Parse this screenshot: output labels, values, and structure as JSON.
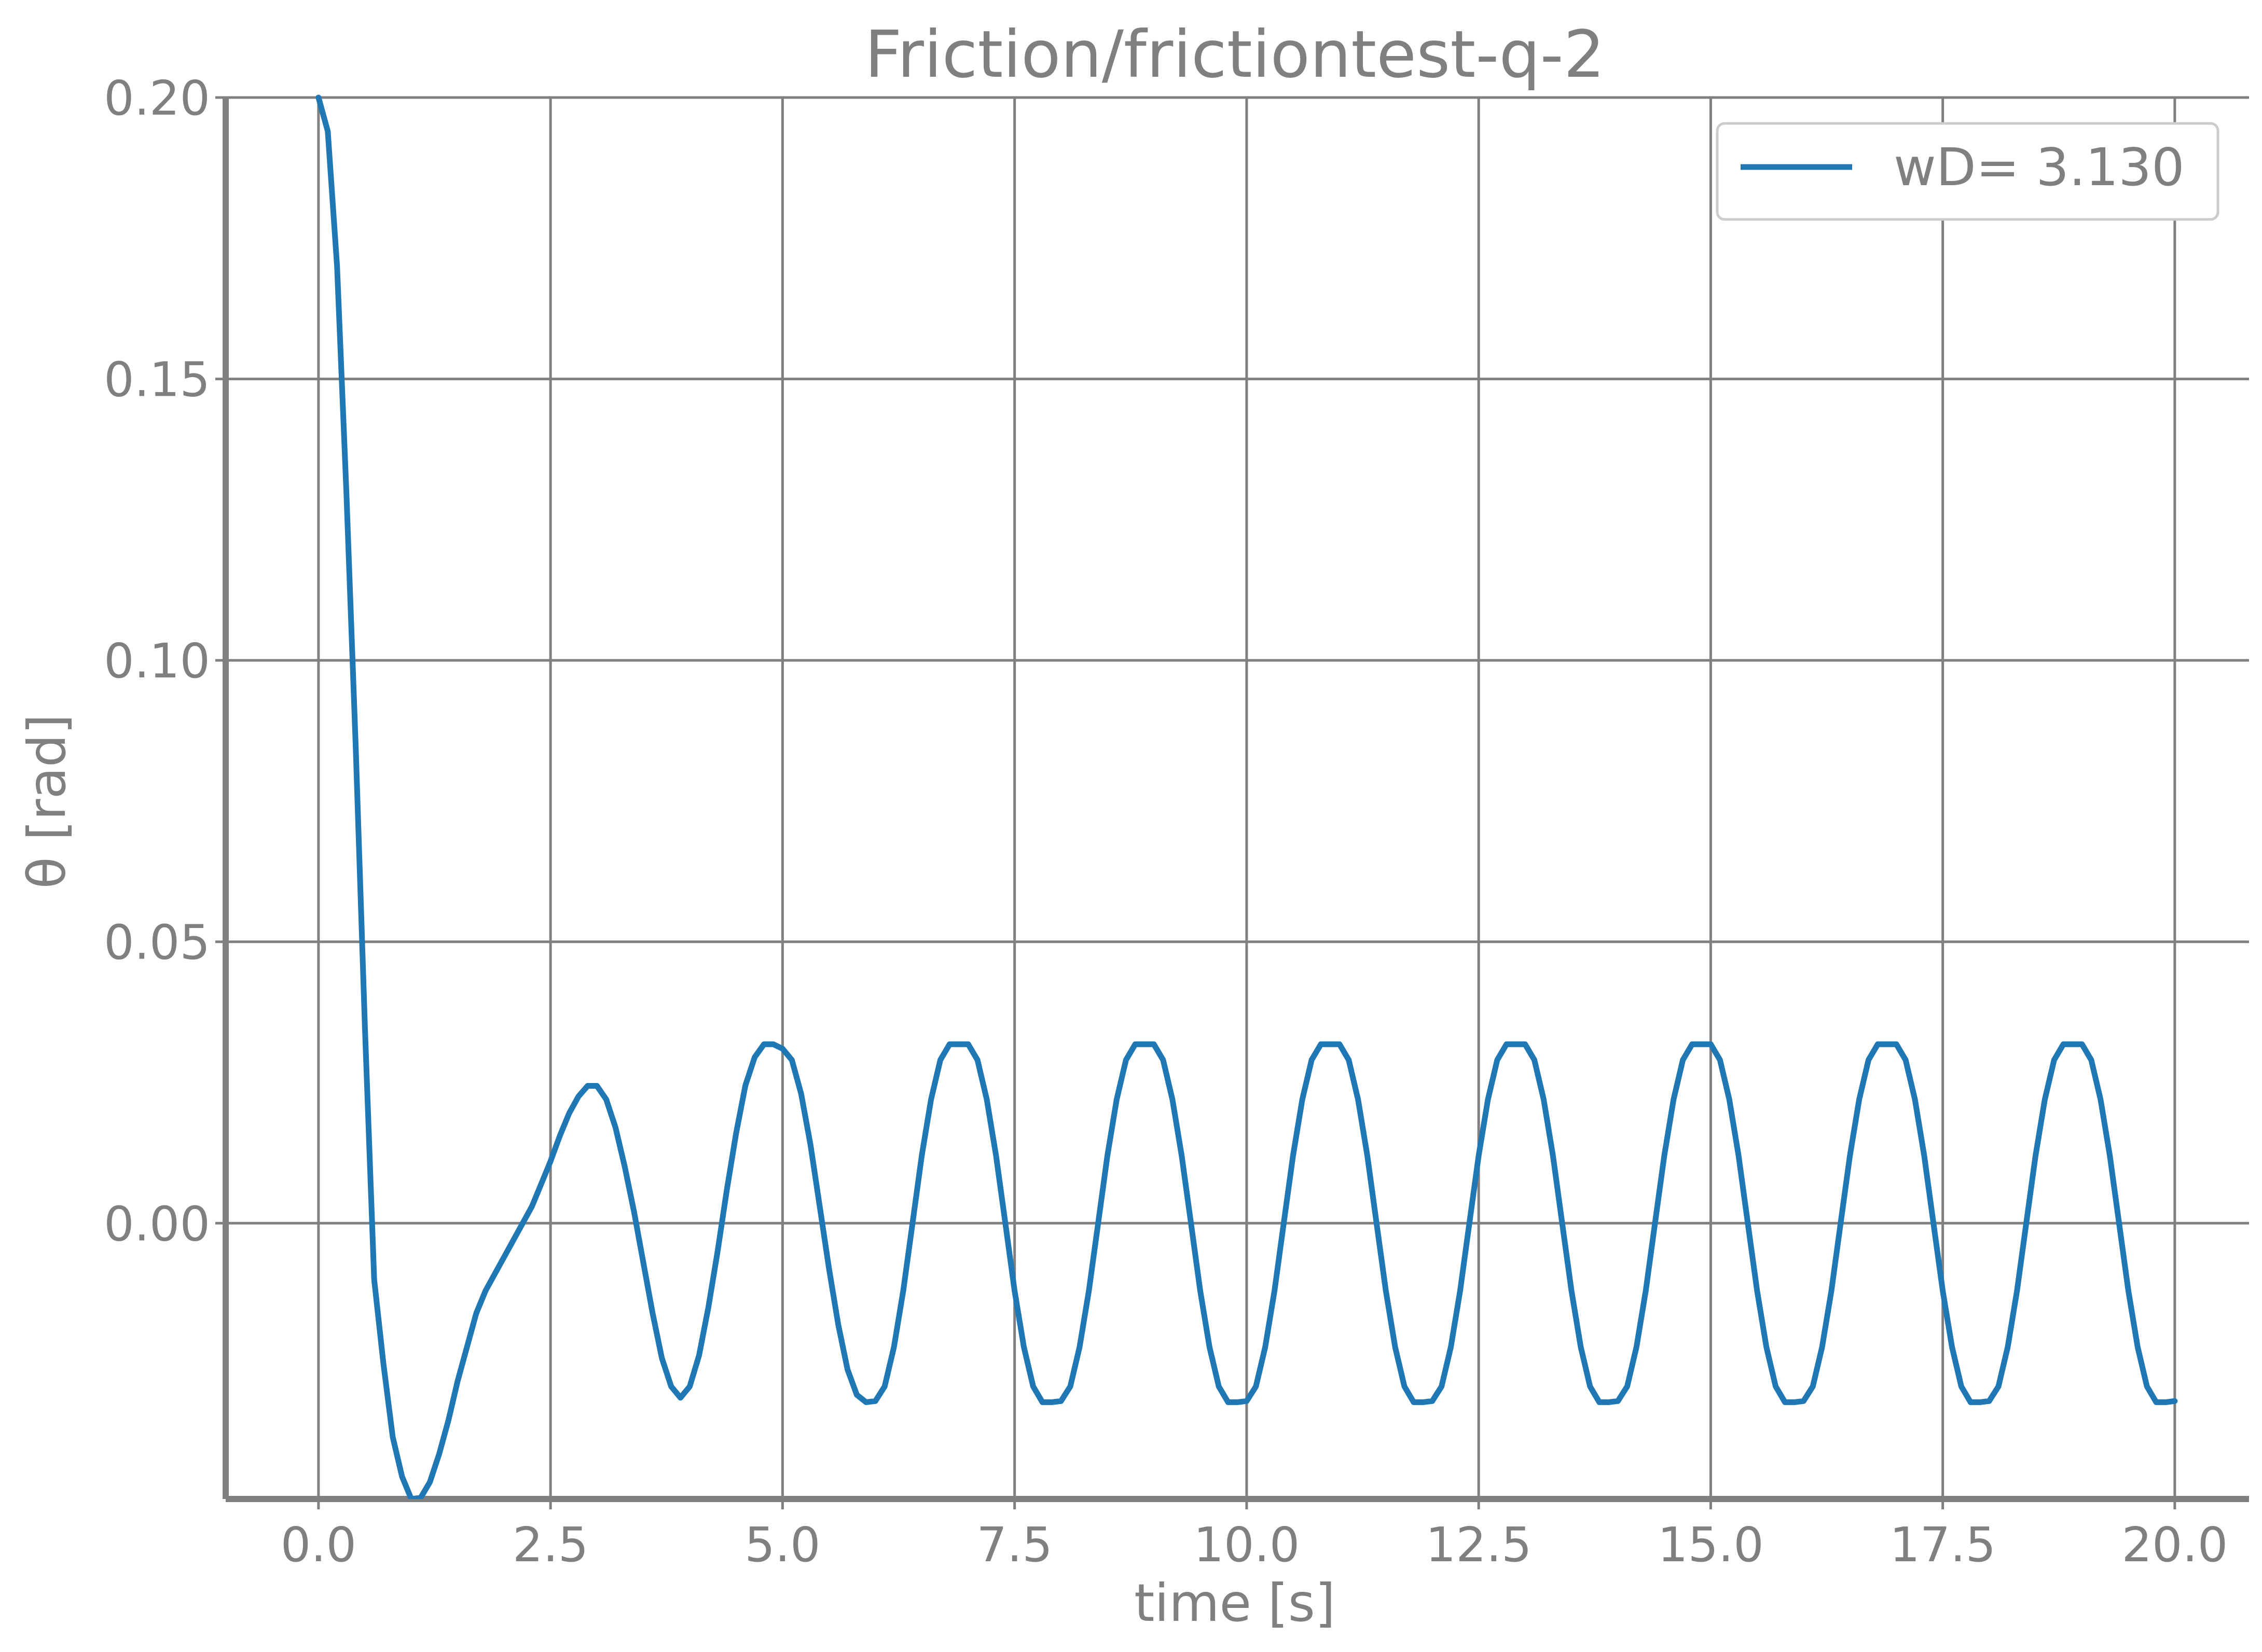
{
  "chart_data": {
    "type": "line",
    "title": "Friction/frictiontest-q-2",
    "xlabel": "time [s]",
    "ylabel": "θ [rad]",
    "xlim": [
      -1.0,
      20.8
    ],
    "ylim": [
      -0.049,
      0.2
    ],
    "xticks": [
      0.0,
      2.5,
      5.0,
      7.5,
      10.0,
      12.5,
      15.0,
      17.5,
      20.0
    ],
    "xtick_labels": [
      "0.0",
      "2.5",
      "5.0",
      "7.5",
      "10.0",
      "12.5",
      "15.0",
      "17.5",
      "20.0"
    ],
    "yticks": [
      0.0,
      0.05,
      0.1,
      0.15,
      0.2
    ],
    "ytick_labels": [
      "0.00",
      "0.05",
      "0.10",
      "0.15",
      "0.20"
    ],
    "grid": true,
    "legend_position": "top-right",
    "series": [
      {
        "name": "wD= 3.130",
        "color": "#1f77b4",
        "x": [
          0.0,
          0.1,
          0.2,
          0.3,
          0.4,
          0.5,
          0.6,
          0.7,
          0.8,
          0.9,
          1.0,
          1.1,
          1.2,
          1.3,
          1.4,
          1.5,
          1.6,
          1.7,
          1.8,
          1.9,
          2.0,
          2.1,
          2.2,
          2.3,
          2.4,
          2.5,
          2.6,
          2.7,
          2.8,
          2.9,
          3.0,
          3.1,
          3.2,
          3.3,
          3.4,
          3.5,
          3.6,
          3.7,
          3.8,
          3.9,
          4.0,
          4.1,
          4.2,
          4.3,
          4.4,
          4.5,
          4.6,
          4.7,
          4.8,
          4.9,
          5.0,
          5.1,
          5.2,
          5.3,
          5.4,
          5.5,
          5.6,
          5.7,
          5.8,
          5.9,
          6.0,
          6.1,
          6.2,
          6.3,
          6.4,
          6.5,
          6.6,
          6.7,
          6.8,
          6.9,
          7.0,
          7.1,
          7.2,
          7.3,
          7.4,
          7.5,
          7.6,
          7.7,
          7.8,
          7.9,
          8.0,
          8.1,
          8.2,
          8.3,
          8.4,
          8.5,
          8.6,
          8.7,
          8.8,
          8.9,
          9.0,
          9.1,
          9.2,
          9.3,
          9.4,
          9.5,
          9.6,
          9.7,
          9.8,
          9.9,
          10.0,
          10.1,
          10.2,
          10.3,
          10.4,
          10.5,
          10.6,
          10.7,
          10.8,
          10.9,
          11.0,
          11.1,
          11.2,
          11.3,
          11.4,
          11.5,
          11.6,
          11.7,
          11.8,
          11.9,
          12.0,
          12.1,
          12.2,
          12.3,
          12.4,
          12.5,
          12.6,
          12.7,
          12.8,
          12.9,
          13.0,
          13.1,
          13.2,
          13.3,
          13.4,
          13.5,
          13.6,
          13.7,
          13.8,
          13.9,
          14.0,
          14.1,
          14.2,
          14.3,
          14.4,
          14.5,
          14.6,
          14.7,
          14.8,
          14.9,
          15.0,
          15.1,
          15.2,
          15.3,
          15.4,
          15.5,
          15.6,
          15.7,
          15.8,
          15.9,
          16.0,
          16.1,
          16.2,
          16.3,
          16.4,
          16.5,
          16.6,
          16.7,
          16.8,
          16.9,
          17.0,
          17.1,
          17.2,
          17.3,
          17.4,
          17.5,
          17.6,
          17.7,
          17.8,
          17.9,
          18.0,
          18.1,
          18.2,
          18.3,
          18.4,
          18.5,
          18.6,
          18.7,
          18.8,
          18.9,
          19.0,
          19.1,
          19.2,
          19.3,
          19.4,
          19.5,
          19.6,
          19.7,
          19.8,
          19.9,
          20.0
        ],
        "y": [
          0.2,
          0.194,
          0.17,
          0.13,
          0.085,
          0.035,
          -0.01,
          -0.025,
          -0.038,
          -0.045,
          -0.049,
          -0.0488,
          -0.046,
          -0.041,
          -0.035,
          -0.028,
          -0.022,
          -0.016,
          -0.012,
          -0.009,
          -0.006,
          -0.003,
          0.0,
          0.003,
          0.007,
          0.011,
          0.0155,
          0.0195,
          0.0225,
          0.0244,
          0.0244,
          0.022,
          0.017,
          0.01,
          0.002,
          -0.007,
          -0.016,
          -0.024,
          -0.029,
          -0.031,
          -0.029,
          -0.0235,
          -0.015,
          -0.005,
          0.006,
          0.016,
          0.0245,
          0.0295,
          0.0318,
          0.0318,
          0.031,
          0.029,
          0.023,
          0.014,
          0.003,
          -0.008,
          -0.018,
          -0.026,
          -0.0305,
          -0.0318,
          -0.0316,
          -0.029,
          -0.022,
          -0.012,
          0.0,
          0.012,
          0.022,
          0.029,
          0.0318,
          0.0318,
          0.0318,
          0.029,
          0.022,
          0.012,
          0.0,
          -0.012,
          -0.022,
          -0.029,
          -0.0318,
          -0.0318,
          -0.0316,
          -0.029,
          -0.022,
          -0.012,
          0.0,
          0.012,
          0.022,
          0.029,
          0.0318,
          0.0318,
          0.0318,
          0.029,
          0.022,
          0.012,
          0.0,
          -0.012,
          -0.022,
          -0.029,
          -0.0318,
          -0.0318,
          -0.0316,
          -0.029,
          -0.022,
          -0.012,
          0.0,
          0.012,
          0.022,
          0.029,
          0.0318,
          0.0318,
          0.0318,
          0.029,
          0.022,
          0.012,
          0.0,
          -0.012,
          -0.022,
          -0.029,
          -0.0318,
          -0.0318,
          -0.0316,
          -0.029,
          -0.022,
          -0.012,
          0.0,
          0.012,
          0.022,
          0.029,
          0.0318,
          0.0318,
          0.0318,
          0.029,
          0.022,
          0.012,
          0.0,
          -0.012,
          -0.022,
          -0.029,
          -0.0318,
          -0.0318,
          -0.0316,
          -0.029,
          -0.022,
          -0.012,
          0.0,
          0.012,
          0.022,
          0.029,
          0.0318,
          0.0318,
          0.0318,
          0.029,
          0.022,
          0.012,
          0.0,
          -0.012,
          -0.022,
          -0.029,
          -0.0318,
          -0.0318,
          -0.0316,
          -0.029,
          -0.022,
          -0.012,
          0.0,
          0.012,
          0.022,
          0.029,
          0.0318,
          0.0318,
          0.0318,
          0.029,
          0.022,
          0.012,
          0.0,
          -0.012,
          -0.022,
          -0.029,
          -0.0318,
          -0.0318,
          -0.0316,
          -0.029,
          -0.022,
          -0.012,
          0.0,
          0.012,
          0.022,
          0.029,
          0.0318,
          0.0318,
          0.0318,
          0.029,
          0.022,
          0.012,
          0.0,
          -0.012,
          -0.022,
          -0.029,
          -0.0318,
          -0.0318,
          -0.0316
        ]
      }
    ]
  }
}
